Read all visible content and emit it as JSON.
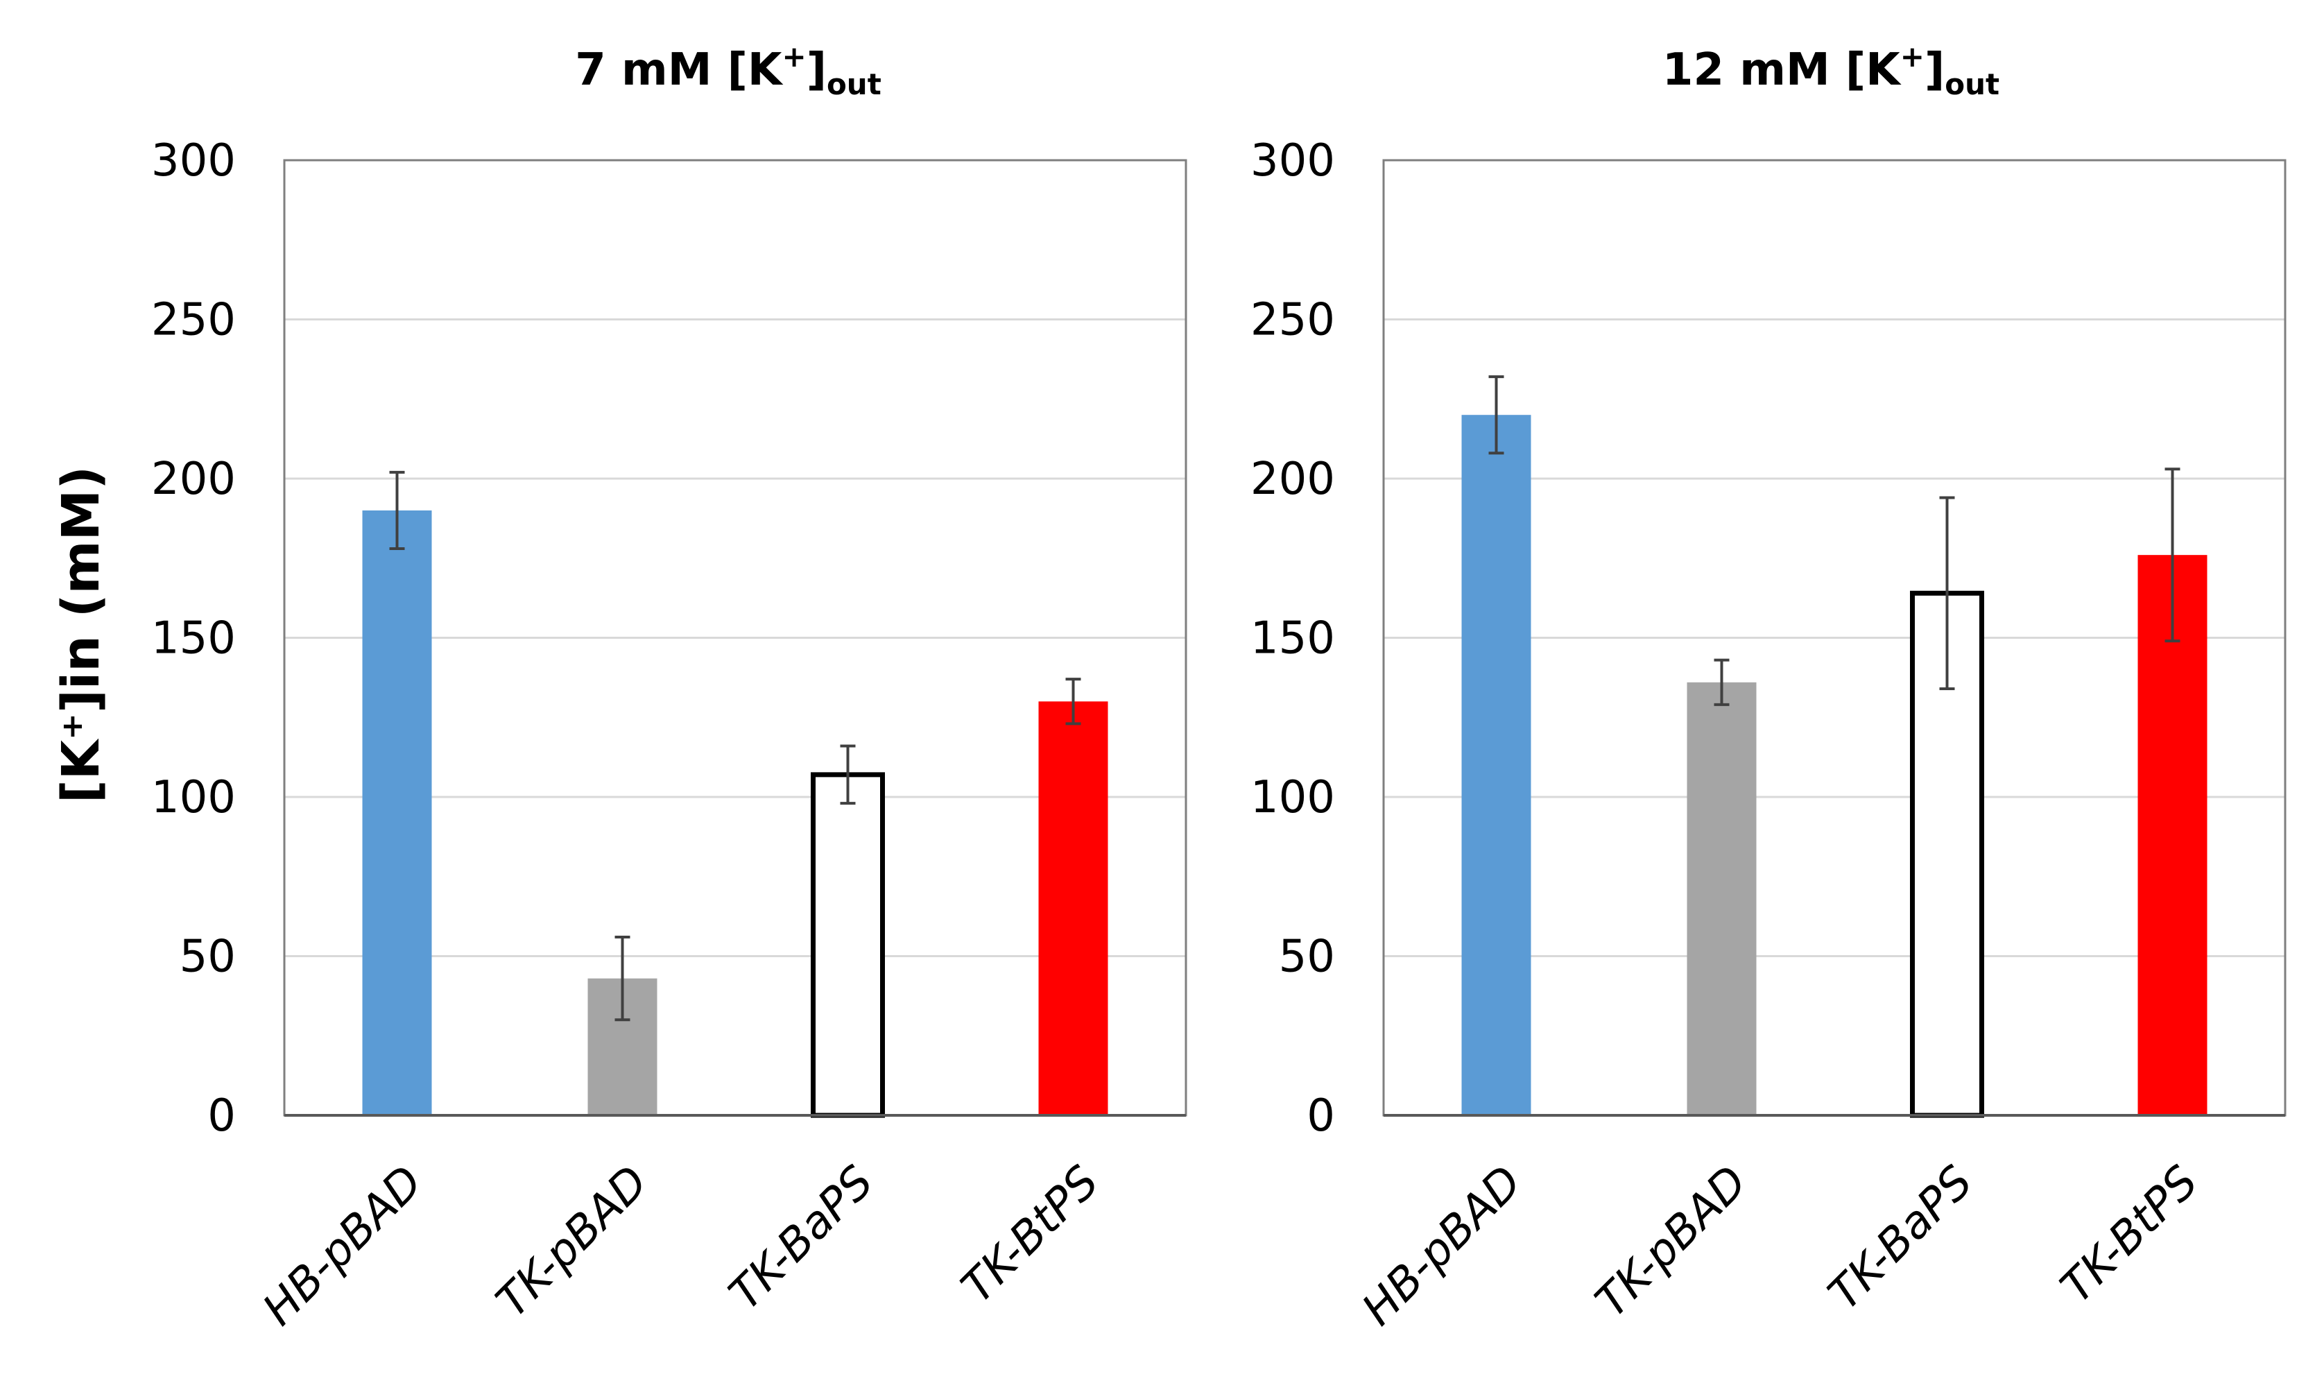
{
  "y_axis_label": "[K⁺]in (mM)",
  "chart_data": [
    {
      "type": "bar",
      "title_main": "7 mM [K",
      "title_sup": "+",
      "title_rest": "]",
      "title_sub": "out",
      "categories": [
        "HB-pBAD",
        "TK-pBAD",
        "TK-BaPS",
        "TK-BtPS"
      ],
      "values": [
        190,
        43,
        107,
        130
      ],
      "errors": [
        12,
        13,
        9,
        7
      ],
      "ylim": [
        0,
        300
      ],
      "yticks": [
        0,
        50,
        100,
        150,
        200,
        250,
        300
      ],
      "colors": [
        "#5b9bd5",
        "#a5a5a5",
        "#ffffff",
        "#ff0000"
      ],
      "outline": [
        false,
        false,
        true,
        false
      ]
    },
    {
      "type": "bar",
      "title_main": "12 mM [K",
      "title_sup": "+",
      "title_rest": "]",
      "title_sub": "out",
      "categories": [
        "HB-pBAD",
        "TK-pBAD",
        "TK-BaPS",
        "TK-BtPS"
      ],
      "values": [
        220,
        136,
        164,
        176
      ],
      "errors": [
        12,
        7,
        30,
        27
      ],
      "ylim": [
        0,
        300
      ],
      "yticks": [
        0,
        50,
        100,
        150,
        200,
        250,
        300
      ],
      "colors": [
        "#5b9bd5",
        "#a5a5a5",
        "#ffffff",
        "#ff0000"
      ],
      "outline": [
        false,
        false,
        true,
        false
      ]
    }
  ]
}
